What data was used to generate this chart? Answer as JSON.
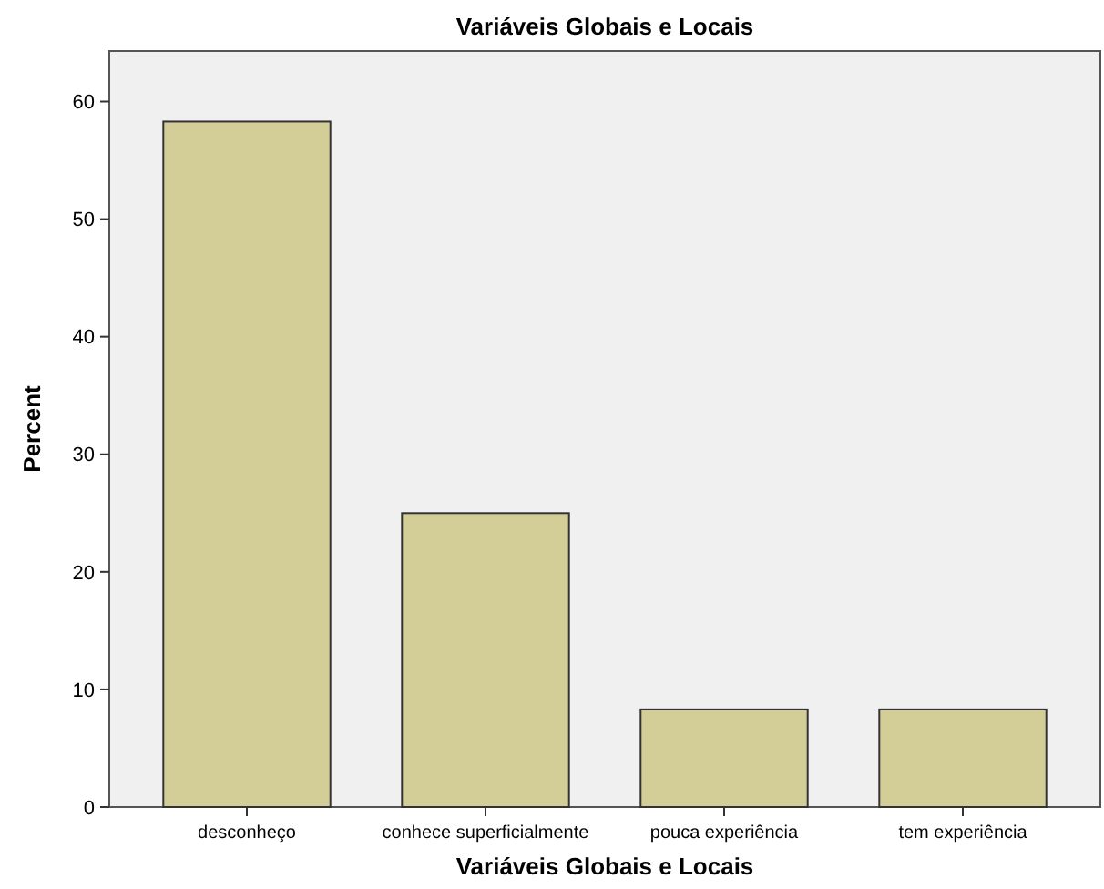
{
  "chart_data": {
    "type": "bar",
    "title": "Variáveis Globais e Locais",
    "xlabel": "Variáveis Globais e Locais",
    "ylabel": "Percent",
    "categories": [
      "desconheço",
      "conhece superficialmente",
      "pouca experiência",
      "tem experiência"
    ],
    "values": [
      58.3,
      25,
      8.3,
      8.3
    ],
    "color": "#d3ce97",
    "ylim": [
      0,
      64.3
    ],
    "yticks": [
      0,
      10,
      20,
      30,
      40,
      50,
      60
    ],
    "grid": false
  }
}
